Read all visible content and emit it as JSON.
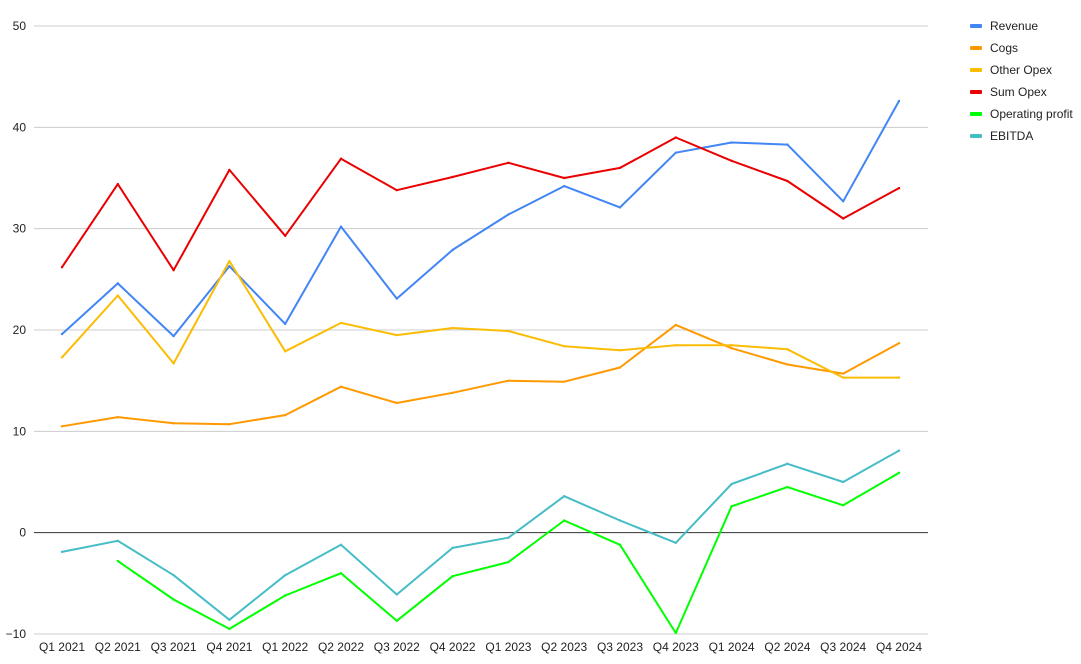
{
  "chart_data": {
    "type": "line",
    "title": "",
    "xlabel": "",
    "ylabel": "",
    "ylim": [
      -10,
      50
    ],
    "yticks": [
      -10,
      0,
      10,
      20,
      30,
      40,
      50
    ],
    "grid": true,
    "legend_position": "right",
    "categories": [
      "Q1 2021",
      "Q2 2021",
      "Q3 2021",
      "Q4 2021",
      "Q1 2022",
      "Q2 2022",
      "Q3 2022",
      "Q4 2022",
      "Q1 2023",
      "Q2 2023",
      "Q3 2023",
      "Q4 2023",
      "Q1 2024",
      "Q2 2024",
      "Q3 2024",
      "Q4 2024"
    ],
    "series": [
      {
        "name": "Revenue",
        "color": "#4285f4",
        "values": [
          19.6,
          24.6,
          19.4,
          26.3,
          20.6,
          30.2,
          23.1,
          27.9,
          31.4,
          34.2,
          32.1,
          37.5,
          38.5,
          38.3,
          32.7,
          42.6
        ]
      },
      {
        "name": "Cogs",
        "color": "#ff9900",
        "values": [
          10.5,
          11.4,
          10.8,
          10.7,
          11.6,
          14.4,
          12.8,
          13.8,
          15.0,
          14.9,
          16.3,
          20.5,
          18.2,
          16.6,
          15.7,
          18.7
        ]
      },
      {
        "name": "Other Opex",
        "color": "#fbbc04",
        "values": [
          17.3,
          23.4,
          16.7,
          26.8,
          17.9,
          20.7,
          19.5,
          20.2,
          19.9,
          18.4,
          18.0,
          18.5,
          18.5,
          18.1,
          15.3,
          15.3
        ]
      },
      {
        "name": "Sum Opex",
        "color": "#ea0000",
        "values": [
          26.2,
          34.4,
          25.9,
          35.8,
          29.3,
          36.9,
          33.8,
          35.1,
          36.5,
          35.0,
          36.0,
          39.0,
          36.7,
          34.7,
          31.0,
          34.0
        ]
      },
      {
        "name": "Operating profit",
        "color": "#00ff00",
        "values": [
          null,
          -2.8,
          -6.6,
          -9.5,
          -6.2,
          -4.0,
          -8.7,
          -4.3,
          -2.9,
          1.2,
          -1.2,
          -9.9,
          2.6,
          4.5,
          2.7,
          5.9
        ]
      },
      {
        "name": "EBITDA",
        "color": "#46bdc6",
        "values": [
          -1.9,
          -0.8,
          -4.2,
          -8.6,
          -4.2,
          -1.2,
          -6.1,
          -1.5,
          -0.5,
          3.6,
          1.2,
          -1.0,
          4.8,
          6.8,
          5.0,
          8.1
        ]
      }
    ]
  }
}
